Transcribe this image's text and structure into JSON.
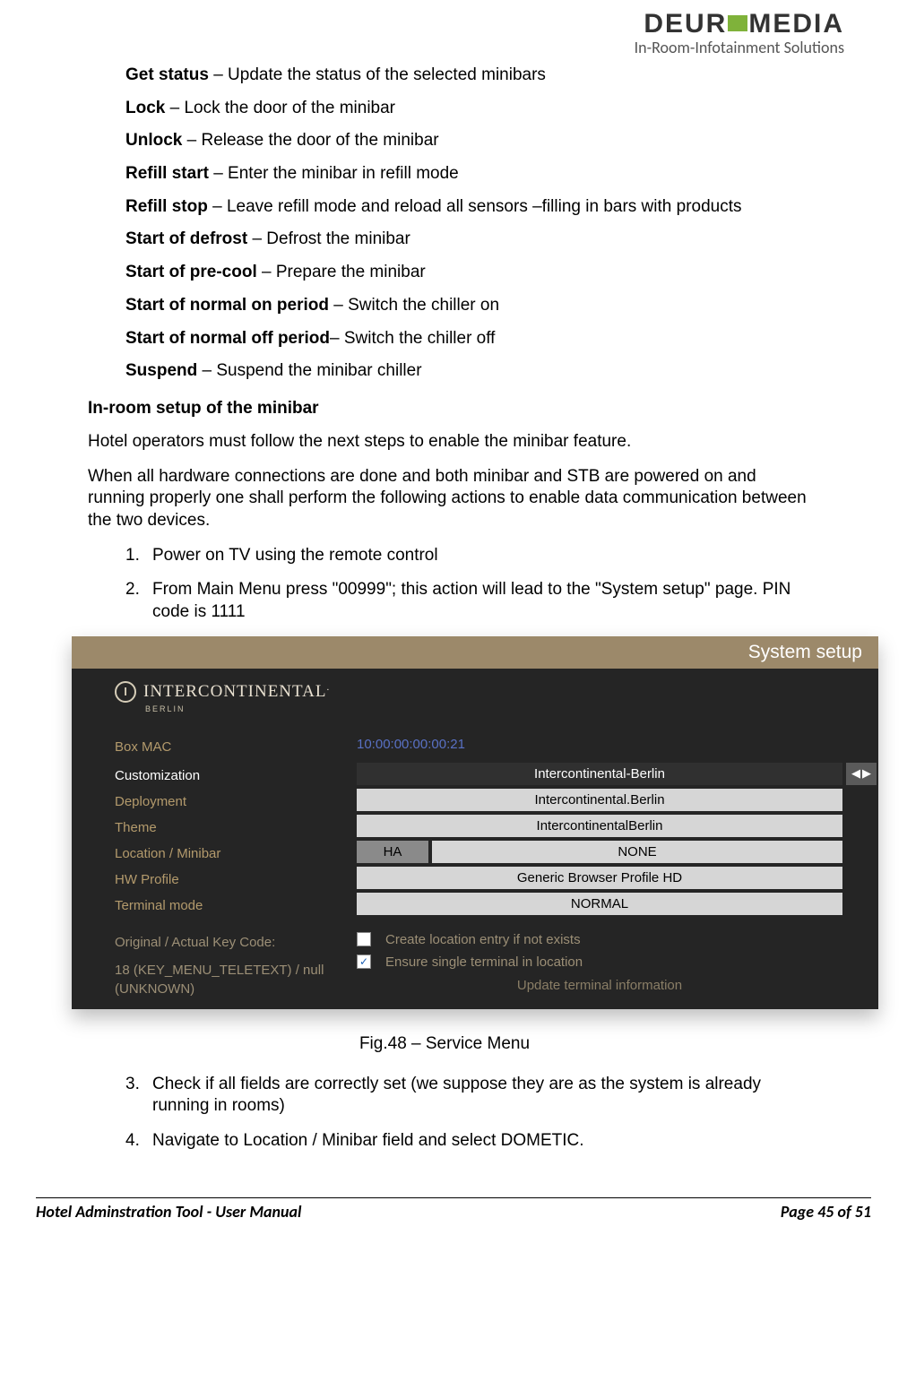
{
  "logo": {
    "prefix": "DEUR",
    "suffix": "MEDIA",
    "subtitle": "In-Room-Infotainment Solutions"
  },
  "definitions": [
    {
      "term": "Get status",
      "desc": " – Update the status of the selected minibars"
    },
    {
      "term": "Lock",
      "desc": " – Lock the door of the minibar"
    },
    {
      "term": "Unlock",
      "desc": " – Release the door of the minibar"
    },
    {
      "term": "Refill start",
      "desc": " – Enter the minibar in refill mode"
    },
    {
      "term": "Refill stop",
      "desc": " – Leave refill mode and reload all sensors –filling in bars with products"
    },
    {
      "term": "Start of defrost",
      "desc": " – Defrost the minibar"
    },
    {
      "term": "Start of pre-cool",
      "desc": " – Prepare the minibar"
    },
    {
      "term": "Start of normal on period",
      "desc": " – Switch the chiller on"
    },
    {
      "term": "Start of normal off period",
      "desc": "– Switch the chiller off"
    },
    {
      "term": "Suspend",
      "desc": " – Suspend the minibar chiller"
    }
  ],
  "section_heading": "In-room setup of the minibar",
  "para1": "Hotel operators must follow the next steps to enable the minibar feature.",
  "para2": "When all hardware connections are done and both minibar and STB are powered on and running properly one shall perform the following actions to enable data communication between the two devices.",
  "steps_a": [
    {
      "n": "1.",
      "t": "Power on TV using the remote control"
    },
    {
      "n": "2.",
      "t": "From Main Menu press \"00999\"; this action will lead to the \"System setup\" page. PIN code is 1111"
    }
  ],
  "screenshot": {
    "title": "System setup",
    "hotel_logo_main": "INTERCONTINENTAL",
    "hotel_logo_dot": ".",
    "hotel_logo_sub": "BERLIN",
    "labels": {
      "box_mac": "Box MAC",
      "customization": "Customization",
      "deployment": "Deployment",
      "theme": "Theme",
      "location": "Location / Minibar",
      "hw_profile": "HW Profile",
      "terminal_mode": "Terminal mode",
      "keycode_label": "Original / Actual Key Code:",
      "keycode_value": "18 (KEY_MENU_TELETEXT) / null (UNKNOWN)"
    },
    "values": {
      "box_mac": "10:00:00:00:00:21",
      "customization": "Intercontinental-Berlin",
      "deployment": "Intercontinental.Berlin",
      "theme": "IntercontinentalBerlin",
      "location_left": "HA",
      "location_right": "NONE",
      "hw_profile": "Generic Browser Profile HD",
      "terminal_mode": "NORMAL"
    },
    "checks": [
      {
        "checked": false,
        "label": "Create location entry if not exists"
      },
      {
        "checked": true,
        "label": "Ensure single terminal in location"
      }
    ],
    "footer_link": "Update terminal information"
  },
  "fig_caption": "Fig.48 – Service Menu",
  "steps_b": [
    {
      "n": "3.",
      "t": "Check if all fields are correctly set (we suppose they are as the system is already running in rooms)"
    },
    {
      "n": "4.",
      "t": "Navigate to Location / Minibar field and select DOMETIC."
    }
  ],
  "footer": {
    "left": "Hotel Adminstration Tool - User Manual",
    "right": "Page 45 of 51"
  }
}
